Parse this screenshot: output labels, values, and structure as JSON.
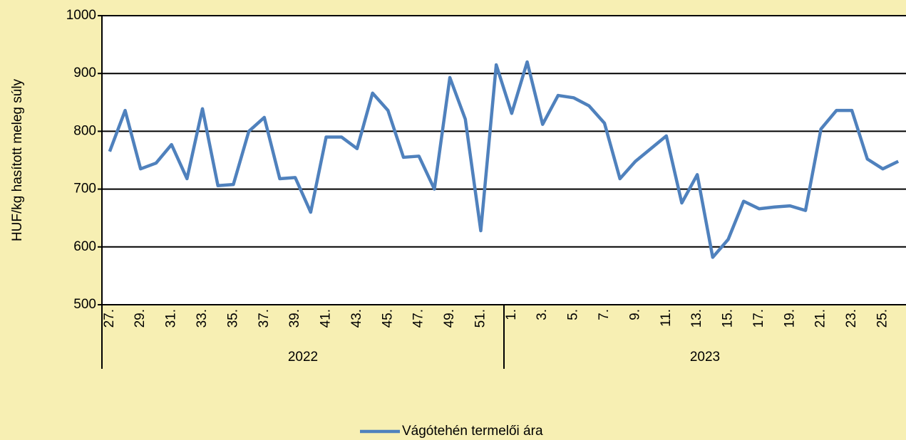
{
  "chart_data": {
    "type": "line",
    "y_label": "HUF/kg hasított meleg súly",
    "categories": [
      "27.",
      null,
      "29.",
      null,
      "31.",
      null,
      "33.",
      null,
      "35.",
      null,
      "37.",
      null,
      "39.",
      null,
      "41.",
      null,
      "43.",
      null,
      "45.",
      null,
      "47.",
      null,
      "49.",
      null,
      "51.",
      null,
      "1.",
      null,
      "3.",
      null,
      "5.",
      null,
      "7.",
      null,
      "9.",
      null,
      "11.",
      null,
      "13.",
      null,
      "15.",
      null,
      "17.",
      null,
      "19.",
      null,
      "21.",
      null,
      "23.",
      null,
      "25.",
      null
    ],
    "groups": [
      "2022",
      "2023"
    ],
    "series": [
      {
        "name": "Vágótehén termelői ára",
        "color": "#4f81bd",
        "values": [
          765,
          836,
          735,
          745,
          777,
          718,
          839,
          706,
          708,
          800,
          824,
          718,
          720,
          660,
          790,
          790,
          770,
          866,
          836,
          755,
          757,
          700,
          893,
          821,
          628,
          915,
          831,
          920,
          812,
          862,
          858,
          844,
          814,
          718,
          748,
          770,
          792,
          676,
          725,
          582,
          613,
          679,
          666,
          669,
          671,
          663,
          804,
          836,
          836,
          752,
          735,
          748
        ]
      }
    ],
    "ylim": [
      500,
      1000
    ],
    "yticks": [
      500,
      600,
      700,
      800,
      900,
      1000
    ],
    "grid": true,
    "legend": "bottom"
  }
}
